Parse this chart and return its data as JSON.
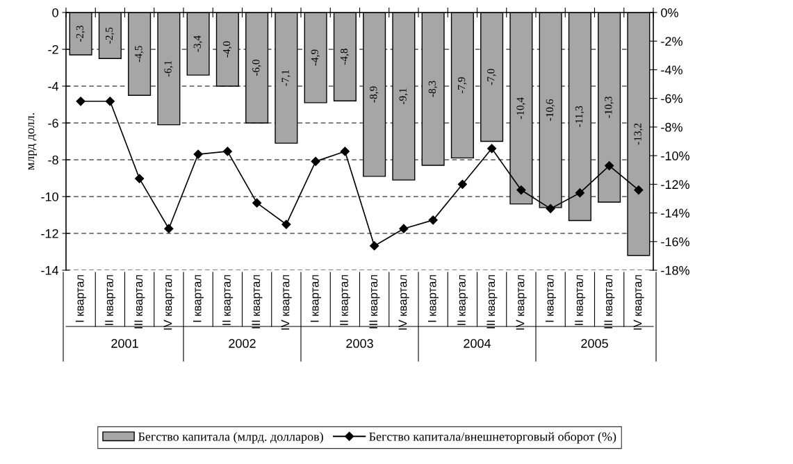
{
  "chart_data": {
    "type": "bar",
    "categories": [
      "I квартал",
      "II квартал",
      "III квартал",
      "IV квартал",
      "I квартал",
      "II квартал",
      "III квартал",
      "IV квартал",
      "I квартал",
      "II квартал",
      "III квартал",
      "IV квартал",
      "I квартал",
      "II квартал",
      "III квартал",
      "IV квартал",
      "I квартал",
      "II квартал",
      "III квартал",
      "IV квартал"
    ],
    "series": [
      {
        "name": "Бегство капитала (млрд. долларов)",
        "color": "#a6a6a6",
        "values": [
          -2.3,
          -2.5,
          -4.5,
          -6.1,
          -3.4,
          -4.0,
          -6.0,
          -7.1,
          -4.9,
          -4.8,
          -8.9,
          -9.1,
          -8.3,
          -7.9,
          -7.0,
          -10.4,
          -10.6,
          -11.3,
          -10.3,
          -13.2
        ],
        "value_labels": [
          "-2,3",
          "-2,5",
          "-4,5",
          "-6,1",
          "-3,4",
          "-4,0",
          "-6,0",
          "-7,1",
          "-4,9",
          "-4,8",
          "-8,9",
          "-9,1",
          "-8,3",
          "-7,9",
          "-7,0",
          "-10,4",
          "-10,6",
          "-11,3",
          "-10,3",
          "-13,2"
        ]
      },
      {
        "name": "Бегство капитала/внешнеторговый оборот (%)",
        "type": "line",
        "axis": "y2",
        "color": "#000000",
        "marker": "diamond",
        "values": [
          -6.2,
          -6.2,
          -11.6,
          -15.1,
          -9.9,
          -9.7,
          -13.3,
          -14.8,
          -10.4,
          -9.7,
          -16.3,
          -15.1,
          -14.5,
          -12.0,
          -9.5,
          -12.4,
          -13.7,
          -12.6,
          -10.7,
          -12.4
        ]
      }
    ],
    "ylabel": "млрд долл.",
    "ylim": [
      -14,
      0
    ],
    "yticks": [
      -14,
      -12,
      -10,
      -8,
      -6,
      -4,
      -2,
      0
    ],
    "y2lim": [
      -18,
      0
    ],
    "y2ticks": [
      {
        "value": -18,
        "label": "-18%"
      },
      {
        "value": -16,
        "label": "-16%"
      },
      {
        "value": -14,
        "label": "-14%"
      },
      {
        "value": -12,
        "label": "-12%"
      },
      {
        "value": -10,
        "label": "-10%"
      },
      {
        "value": -8,
        "label": "-8%"
      },
      {
        "value": -6,
        "label": "-6%"
      },
      {
        "value": -4,
        "label": "-4%"
      },
      {
        "value": -2,
        "label": "-2%"
      },
      {
        "value": 0,
        "label": "0%"
      }
    ],
    "annotations": [
      "2001",
      "2002",
      "2003",
      "2004",
      "2005"
    ],
    "grid": "y",
    "legend": "bottom"
  }
}
